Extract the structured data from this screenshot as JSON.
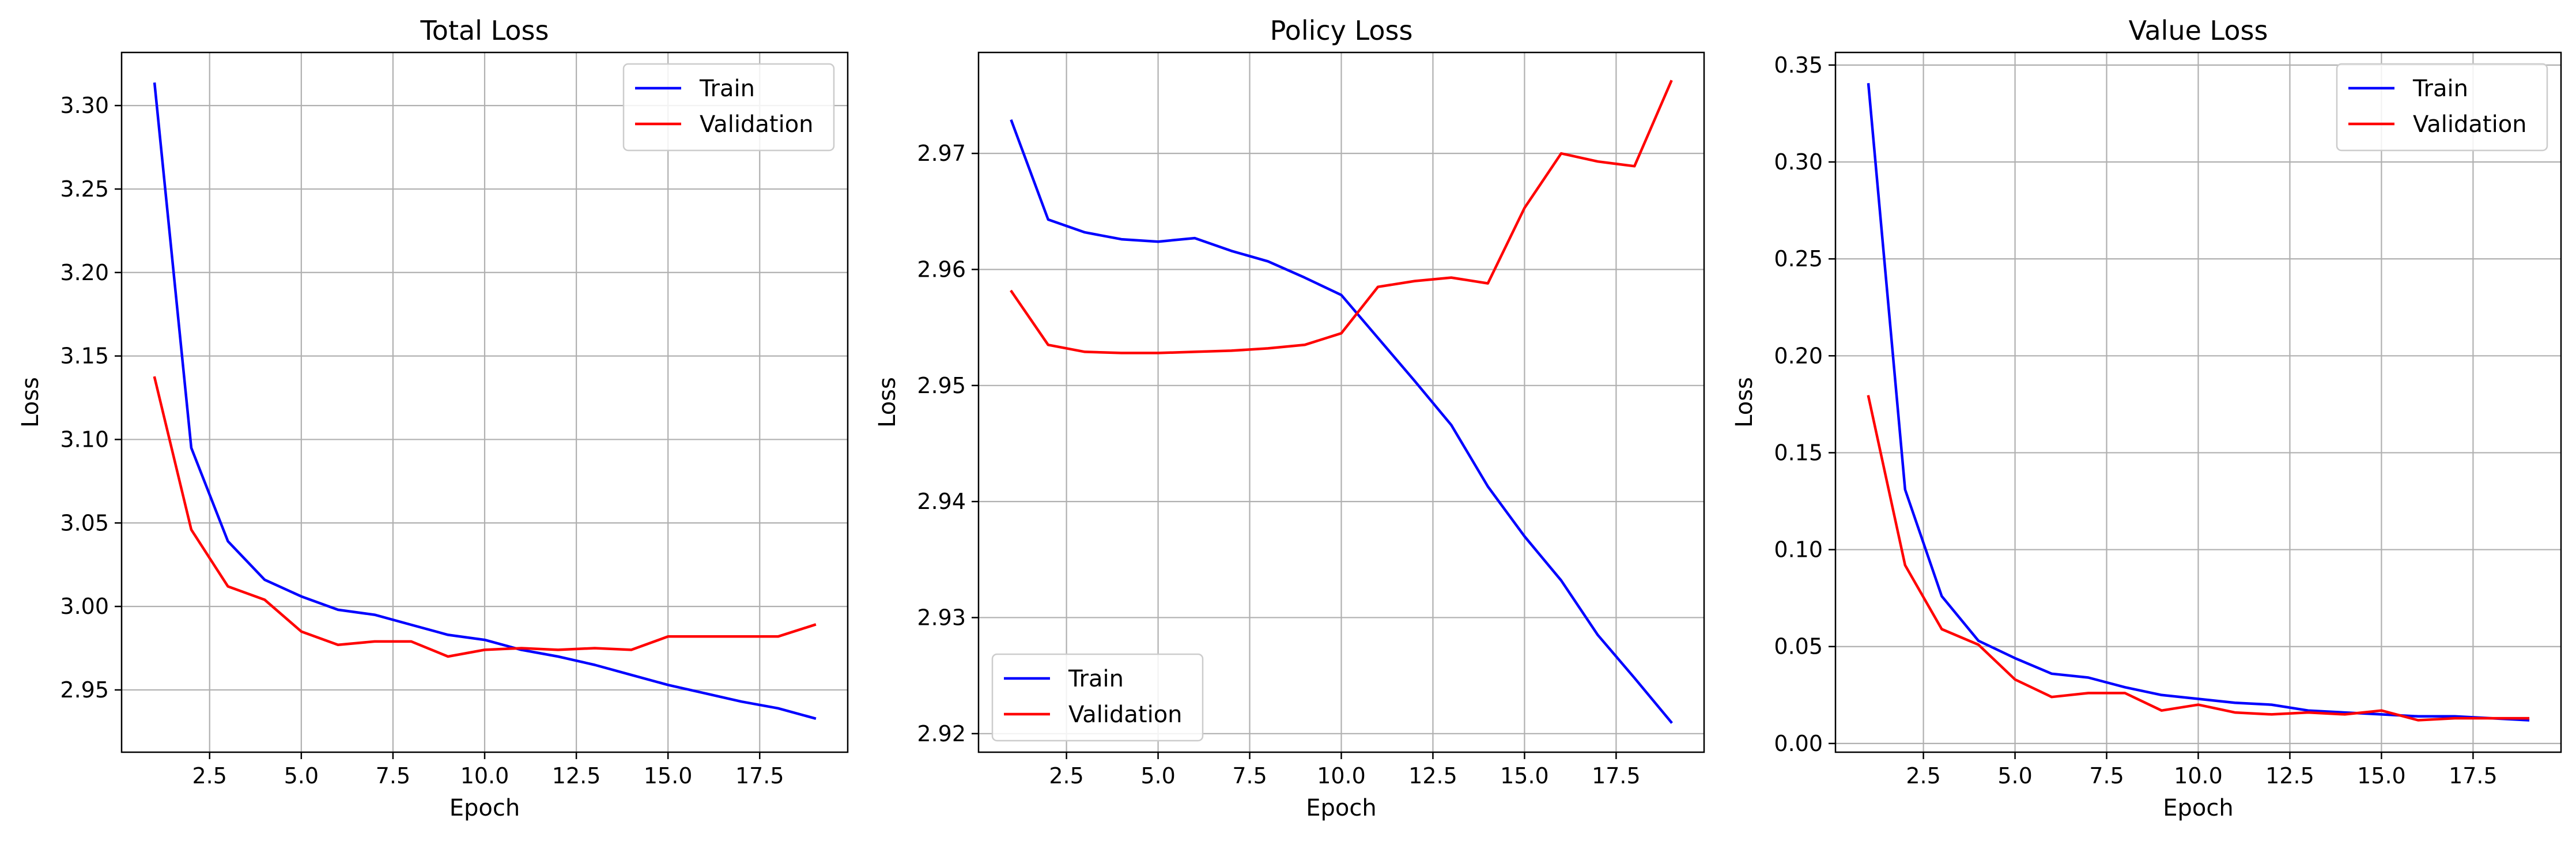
{
  "figure": {
    "background": "#ffffff"
  },
  "chart_data": [
    {
      "type": "line",
      "title": "Total Loss",
      "xlabel": "Epoch",
      "ylabel": "Loss",
      "xlim": [
        0.1,
        19.9
      ],
      "ylim": [
        2.9127,
        3.3318
      ],
      "xticks": [
        2.5,
        5.0,
        7.5,
        10.0,
        12.5,
        15.0,
        17.5
      ],
      "xtick_labels": [
        "2.5",
        "5.0",
        "7.5",
        "10.0",
        "12.5",
        "15.0",
        "17.5"
      ],
      "yticks": [
        2.95,
        3.0,
        3.05,
        3.1,
        3.15,
        3.2,
        3.25,
        3.3
      ],
      "ytick_labels": [
        "2.95",
        "3.00",
        "3.05",
        "3.10",
        "3.15",
        "3.20",
        "3.25",
        "3.30"
      ],
      "grid": true,
      "legend": {
        "position": "upper-right"
      },
      "x": [
        1,
        2,
        3,
        4,
        5,
        6,
        7,
        8,
        9,
        10,
        11,
        12,
        13,
        14,
        15,
        16,
        17,
        18,
        19
      ],
      "series": [
        {
          "name": "Train",
          "color": "#0000ff",
          "values": [
            3.313,
            3.095,
            3.039,
            3.016,
            3.006,
            2.998,
            2.995,
            2.989,
            2.983,
            2.98,
            2.974,
            2.97,
            2.965,
            2.959,
            2.953,
            2.948,
            2.943,
            2.939,
            2.933
          ]
        },
        {
          "name": "Validation",
          "color": "#ff0000",
          "values": [
            3.137,
            3.046,
            3.012,
            3.004,
            2.985,
            2.977,
            2.979,
            2.979,
            2.97,
            2.974,
            2.975,
            2.974,
            2.975,
            2.974,
            2.982,
            2.982,
            2.982,
            2.982,
            2.989
          ]
        }
      ]
    },
    {
      "type": "line",
      "title": "Policy Loss",
      "xlabel": "Epoch",
      "ylabel": "Loss",
      "xlim": [
        0.1,
        19.9
      ],
      "ylim": [
        2.9184,
        2.9787
      ],
      "xticks": [
        2.5,
        5.0,
        7.5,
        10.0,
        12.5,
        15.0,
        17.5
      ],
      "xtick_labels": [
        "2.5",
        "5.0",
        "7.5",
        "10.0",
        "12.5",
        "15.0",
        "17.5"
      ],
      "yticks": [
        2.92,
        2.93,
        2.94,
        2.95,
        2.96,
        2.97
      ],
      "ytick_labels": [
        "2.92",
        "2.93",
        "2.94",
        "2.95",
        "2.96",
        "2.97"
      ],
      "grid": true,
      "legend": {
        "position": "lower-left"
      },
      "x": [
        1,
        2,
        3,
        4,
        5,
        6,
        7,
        8,
        9,
        10,
        11,
        12,
        13,
        14,
        15,
        16,
        17,
        18,
        19
      ],
      "series": [
        {
          "name": "Train",
          "color": "#0000ff",
          "values": [
            2.9728,
            2.9643,
            2.9632,
            2.9626,
            2.9624,
            2.9627,
            2.9616,
            2.9607,
            2.9593,
            2.9578,
            2.9541,
            2.9504,
            2.9466,
            2.9413,
            2.937,
            2.9332,
            2.9285,
            2.9248,
            2.921
          ]
        },
        {
          "name": "Validation",
          "color": "#ff0000",
          "values": [
            2.9581,
            2.9535,
            2.9529,
            2.9528,
            2.9528,
            2.9529,
            2.953,
            2.9532,
            2.9535,
            2.9545,
            2.9585,
            2.959,
            2.9593,
            2.9588,
            2.9653,
            2.97,
            2.9693,
            2.9689,
            2.9762
          ]
        }
      ]
    },
    {
      "type": "line",
      "title": "Value Loss",
      "xlabel": "Epoch",
      "ylabel": "Loss",
      "xlim": [
        0.1,
        19.9
      ],
      "ylim": [
        -0.0045,
        0.3565
      ],
      "xticks": [
        2.5,
        5.0,
        7.5,
        10.0,
        12.5,
        15.0,
        17.5
      ],
      "xtick_labels": [
        "2.5",
        "5.0",
        "7.5",
        "10.0",
        "12.5",
        "15.0",
        "17.5"
      ],
      "yticks": [
        0.0,
        0.05,
        0.1,
        0.15,
        0.2,
        0.25,
        0.3,
        0.35
      ],
      "ytick_labels": [
        "0.00",
        "0.05",
        "0.10",
        "0.15",
        "0.20",
        "0.25",
        "0.30",
        "0.35"
      ],
      "grid": true,
      "legend": {
        "position": "upper-right"
      },
      "x": [
        1,
        2,
        3,
        4,
        5,
        6,
        7,
        8,
        9,
        10,
        11,
        12,
        13,
        14,
        15,
        16,
        17,
        18,
        19
      ],
      "series": [
        {
          "name": "Train",
          "color": "#0000ff",
          "values": [
            0.34,
            0.131,
            0.076,
            0.053,
            0.044,
            0.036,
            0.034,
            0.029,
            0.025,
            0.023,
            0.021,
            0.02,
            0.017,
            0.016,
            0.015,
            0.014,
            0.014,
            0.013,
            0.012
          ]
        },
        {
          "name": "Validation",
          "color": "#ff0000",
          "values": [
            0.179,
            0.092,
            0.059,
            0.051,
            0.033,
            0.024,
            0.026,
            0.026,
            0.017,
            0.02,
            0.016,
            0.015,
            0.016,
            0.015,
            0.017,
            0.012,
            0.013,
            0.013,
            0.013
          ]
        }
      ]
    }
  ]
}
